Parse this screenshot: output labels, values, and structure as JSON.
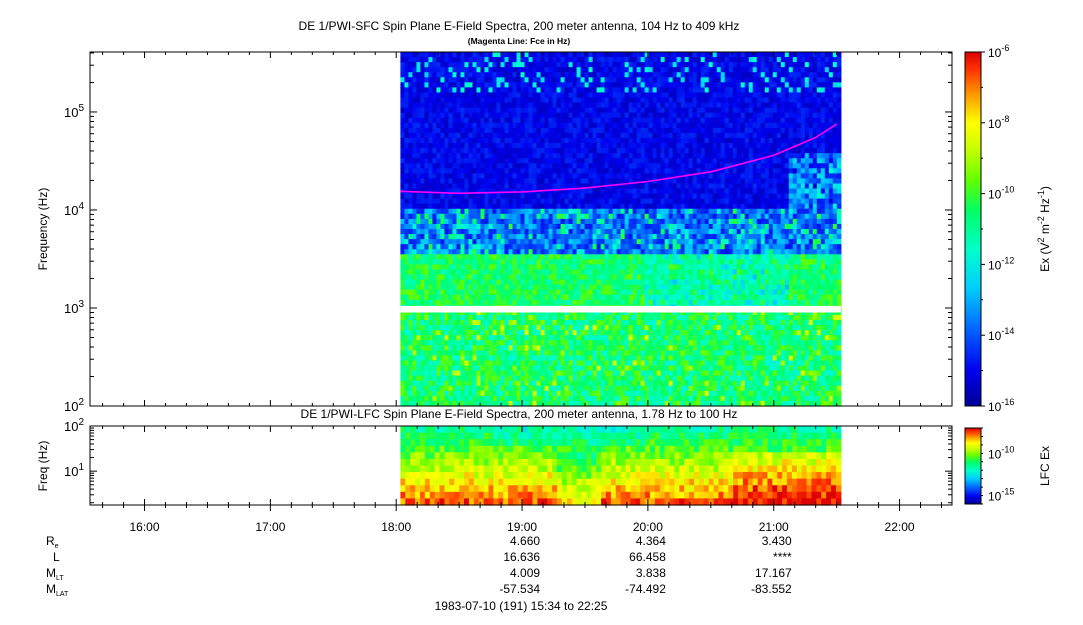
{
  "chart_data": [
    {
      "type": "heatmap",
      "title": "DE 1/PWI-SFC  Spin Plane E-Field Spectra, 200 meter antenna, 104 Hz to 409 kHz",
      "subtitle": "(Magenta Line: Fce in Hz)",
      "ylabel": "Frequency (Hz)",
      "yscale": "log",
      "ylim": [
        100,
        409000
      ],
      "ytick_values": [
        100,
        1000,
        10000,
        100000
      ],
      "ytick_labels": [
        {
          "base": "10",
          "exp": "2"
        },
        {
          "base": "10",
          "exp": "3"
        },
        {
          "base": "10",
          "exp": "4"
        },
        {
          "base": "10",
          "exp": "5"
        }
      ],
      "data_time_range": [
        "18:02",
        "21:32"
      ],
      "gap_hz": [
        900,
        1050
      ],
      "colorbar": {
        "label": "Ex (V² m⁻² Hz⁻¹)",
        "label_parts": {
          "pre": "Ex (V",
          "sup1": "2",
          "mid": " m",
          "sup2": "-2",
          "mid2": " Hz",
          "sup3": "-1",
          "post": ")"
        },
        "scale": "log",
        "range": [
          1e-16,
          1e-06
        ],
        "tick_values": [
          1e-06,
          1e-08,
          1e-10,
          1e-12,
          1e-14,
          1e-16
        ],
        "tick_labels": [
          {
            "base": "10",
            "exp": "-6"
          },
          {
            "base": "10",
            "exp": "-8"
          },
          {
            "base": "10",
            "exp": "-10"
          },
          {
            "base": "10",
            "exp": "-12"
          },
          {
            "base": "10",
            "exp": "-14"
          },
          {
            "base": "10",
            "exp": "-16"
          }
        ]
      },
      "fce_line": {
        "color": "#ff00ff",
        "times": [
          "18:02",
          "18:30",
          "19:00",
          "19:30",
          "20:00",
          "20:30",
          "21:00",
          "21:20",
          "21:30"
        ],
        "values_hz": [
          15500,
          14800,
          15300,
          16700,
          19500,
          24500,
          36000,
          55000,
          75000
        ]
      }
    },
    {
      "type": "heatmap",
      "title": "DE 1/PWI-LFC  Spin Plane E-Field Spectra, 200 meter antenna, 1.78 Hz to 100 Hz",
      "ylabel": "Freq (Hz)",
      "yscale": "log",
      "ylim": [
        1.78,
        100
      ],
      "ytick_values": [
        10,
        100
      ],
      "ytick_labels": [
        {
          "base": "10",
          "exp": "1"
        },
        {
          "base": "10",
          "exp": "2"
        }
      ],
      "data_time_range": [
        "18:02",
        "21:32"
      ],
      "colorbar": {
        "label": "LFC Ex",
        "scale": "log",
        "range": [
          1e-16,
          1e-07
        ],
        "tick_values": [
          1e-10,
          1e-15
        ],
        "tick_labels": [
          {
            "base": "10",
            "exp": "-10"
          },
          {
            "base": "10",
            "exp": "-15"
          }
        ]
      }
    }
  ],
  "time_axis": {
    "range": [
      "15:34",
      "22:25"
    ],
    "tick_labels": [
      "16:00",
      "17:00",
      "18:00",
      "19:00",
      "20:00",
      "21:00",
      "22:00"
    ]
  },
  "ephemeris": {
    "rows": [
      {
        "label": "R",
        "sub": "e",
        "values": [
          "4.660",
          "4.364",
          "3.430"
        ]
      },
      {
        "label": "L",
        "sub": "",
        "values": [
          "16.636",
          "66.458",
          "****"
        ]
      },
      {
        "label": "M",
        "sub": "LT",
        "values": [
          "4.009",
          "3.838",
          "17.167"
        ]
      },
      {
        "label": "M",
        "sub": "LAT",
        "values": [
          "-57.534",
          "-74.492",
          "-83.552"
        ]
      }
    ],
    "value_times": [
      "19:00",
      "20:00",
      "21:00"
    ]
  },
  "footer": "1983-07-10 (191) 15:34 to 22:25"
}
